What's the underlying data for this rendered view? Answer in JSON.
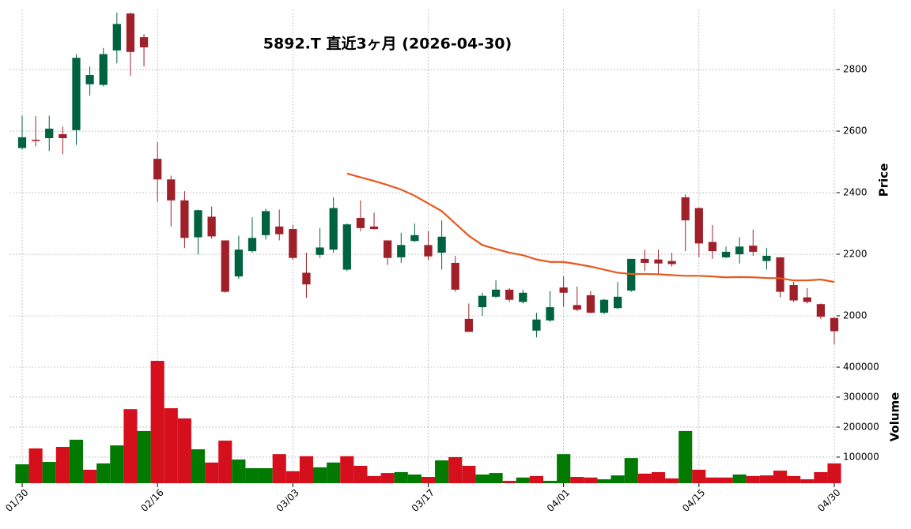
{
  "chart_data": [
    {
      "type": "candlestick",
      "title": "5892.T  直近3ヶ月  (2026-04-30)",
      "ylabel": "Price",
      "categories": [
        "01/30",
        null,
        null,
        null,
        null,
        null,
        null,
        null,
        null,
        null,
        "02/16",
        null,
        null,
        null,
        null,
        null,
        null,
        null,
        null,
        null,
        "03/03",
        null,
        null,
        null,
        null,
        null,
        null,
        null,
        null,
        null,
        "03/17",
        null,
        null,
        null,
        null,
        null,
        null,
        null,
        null,
        null,
        "04/01",
        null,
        null,
        null,
        null,
        null,
        null,
        null,
        null,
        null,
        "04/15",
        null,
        null,
        null,
        null,
        null,
        null,
        null,
        null,
        null,
        "04/30"
      ],
      "open": [
        2545,
        2572,
        2577,
        2590,
        2603,
        2752,
        2750,
        2862,
        2982,
        2905,
        2510,
        2443,
        2375,
        2255,
        2322,
        2245,
        2128,
        2210,
        2262,
        2290,
        2282,
        2140,
        2198,
        2215,
        2150,
        2318,
        2290,
        2245,
        2190,
        2243,
        2230,
        2205,
        2172,
        1990,
        2028,
        2062,
        2085,
        2045,
        1952,
        1985,
        2092,
        2035,
        2067,
        2010,
        2025,
        2082,
        2185,
        2183,
        2178,
        2385,
        2350,
        2240,
        2190,
        2200,
        2228,
        2178,
        2190,
        2100,
        2060,
        2038,
        1993
      ],
      "high": [
        2650,
        2648,
        2650,
        2615,
        2850,
        2810,
        2870,
        2985,
        2985,
        2915,
        2565,
        2455,
        2405,
        2345,
        2355,
        2245,
        2260,
        2320,
        2348,
        2345,
        2295,
        2205,
        2285,
        2385,
        2300,
        2375,
        2335,
        2245,
        2270,
        2300,
        2275,
        2310,
        2195,
        2040,
        2075,
        2115,
        2090,
        2085,
        2010,
        2080,
        2128,
        2095,
        2080,
        2055,
        2110,
        2185,
        2215,
        2215,
        2205,
        2395,
        2352,
        2295,
        2225,
        2255,
        2280,
        2220,
        2190,
        2110,
        2090,
        2040,
        1995
      ],
      "low": [
        2540,
        2550,
        2535,
        2525,
        2555,
        2715,
        2745,
        2820,
        2780,
        2810,
        2370,
        2290,
        2220,
        2200,
        2250,
        2075,
        2120,
        2205,
        2248,
        2245,
        2182,
        2058,
        2188,
        2205,
        2145,
        2275,
        2280,
        2165,
        2172,
        2240,
        2180,
        2150,
        2078,
        1948,
        2000,
        2058,
        2045,
        2040,
        1930,
        1980,
        2030,
        2015,
        2008,
        2005,
        2022,
        2078,
        2145,
        2135,
        2160,
        2210,
        2190,
        2185,
        2187,
        2170,
        2195,
        2150,
        2060,
        2045,
        2040,
        1990,
        1908
      ],
      "close": [
        2580,
        2568,
        2608,
        2577,
        2838,
        2782,
        2850,
        2948,
        2857,
        2872,
        2443,
        2375,
        2253,
        2343,
        2258,
        2078,
        2215,
        2253,
        2340,
        2265,
        2188,
        2102,
        2222,
        2350,
        2297,
        2285,
        2282,
        2188,
        2230,
        2262,
        2193,
        2257,
        2085,
        1948,
        2065,
        2085,
        2052,
        2075,
        1988,
        2028,
        2075,
        2020,
        2010,
        2052,
        2062,
        2185,
        2172,
        2170,
        2168,
        2310,
        2235,
        2210,
        2208,
        2225,
        2208,
        2195,
        2078,
        2050,
        2045,
        1997,
        1950
      ],
      "up_color": "#006340",
      "down_color": "#a0202a",
      "ma": {
        "color": "#e8581c",
        "values": [
          null,
          null,
          null,
          null,
          null,
          null,
          null,
          null,
          null,
          null,
          null,
          null,
          null,
          null,
          null,
          null,
          null,
          null,
          null,
          null,
          null,
          null,
          null,
          null,
          2462,
          2450,
          2438,
          2425,
          2410,
          2390,
          2365,
          2340,
          2300,
          2260,
          2230,
          2217,
          2205,
          2197,
          2183,
          2175,
          2175,
          2168,
          2160,
          2150,
          2140,
          2136,
          2136,
          2135,
          2132,
          2130,
          2130,
          2128,
          2125,
          2126,
          2125,
          2123,
          2122,
          2115,
          2115,
          2118,
          2110
        ]
      },
      "ylim": [
        1900,
        2995
      ],
      "yticks": [
        2000,
        2200,
        2400,
        2600,
        2800
      ],
      "grid": true
    },
    {
      "type": "bar",
      "ylabel": "Volume",
      "values": [
        76000,
        129000,
        84000,
        134000,
        158000,
        58000,
        79000,
        139000,
        260000,
        187000,
        421000,
        263000,
        229000,
        126000,
        82000,
        155000,
        92000,
        63000,
        63000,
        110000,
        53000,
        103000,
        66000,
        82000,
        103000,
        71000,
        37000,
        47000,
        50000,
        42000,
        34000,
        89000,
        100000,
        71000,
        42000,
        47000,
        21000,
        32000,
        37000,
        21000,
        110000,
        34000,
        32000,
        26000,
        39000,
        97000,
        45000,
        50000,
        29000,
        187000,
        58000,
        32000,
        32000,
        42000,
        37000,
        39000,
        55000,
        37000,
        26000,
        50000,
        79000
      ],
      "up_color": "#007a00",
      "down_color": "#d60f1d",
      "ylim": [
        13000,
        425000
      ],
      "yticks": [
        100000,
        200000,
        300000,
        400000
      ],
      "grid": true
    }
  ]
}
